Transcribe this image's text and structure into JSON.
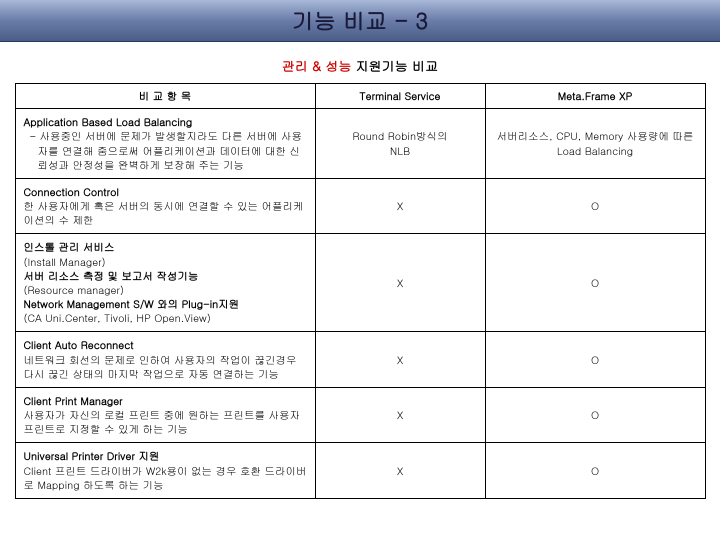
{
  "title": "기능 비교 - 3",
  "subtitle_red": "관리 & 성능",
  "subtitle_rest": " 지원기능 비교",
  "columns": {
    "c1": "비 교   항 목",
    "c2": "Terminal Service",
    "c3": "Meta.Frame XP"
  },
  "rows": [
    {
      "title": "Application Based Load Balancing",
      "body_indent": "-   사용중인 서버에 문제가 발생할지라도 다른 서버에 사용자를 연결해 줌으로써 어플리케이션과 데이터에 대한 신뢰성과 안정성을 완벽하게 보장해 주는 기능",
      "ts": "Round Robin방식의\nNLB",
      "mf": "서버리소스, CPU, Memory 사용량에 따른 Load Balancing"
    },
    {
      "title": "Connection Control",
      "body": "한 사용자에게 혹은 서버의 동시에 연결할 수 있는 어플리케이션의 수 제한",
      "ts": "X",
      "mf": "O"
    },
    {
      "multi": [
        {
          "bold": true,
          "text": "인스톨 관리 서비스"
        },
        {
          "bold": false,
          "text": "(Install Manager)"
        },
        {
          "bold": true,
          "text": "서버 리소스 측정 및 보고서 작성기능"
        },
        {
          "bold": false,
          "text": "(Resource manager)"
        },
        {
          "bold": true,
          "text": "Network Management S/W 와의 Plug-in지원"
        },
        {
          "bold": false,
          "text": "(CA Uni.Center, Tivoli, HP Open.View)"
        }
      ],
      "ts": "X",
      "mf": "O"
    },
    {
      "title": "Client Auto Reconnect",
      "body": "네트워크 회선의 문제로 인하여 사용자의 작업이 끊긴경우 다시 끊긴 상태의 마지막 작업으로 자동 연결하는 기능",
      "ts": "X",
      "mf": "O"
    },
    {
      "title": "Client Print Manager",
      "body": "사용자가 자신의 로컬 프린트 중에 원하는 프린트를 사용자 프린트로 지정할 수 있게 하는 기능",
      "ts": "X",
      "mf": "O"
    },
    {
      "title": "Universal Printer Driver 지원",
      "body": "Client 프린트 드라이버가 W2k용이 없는 경우 호환 드라이버로 Mapping 하도록 하는 기능",
      "ts": "X",
      "mf": "O"
    }
  ]
}
